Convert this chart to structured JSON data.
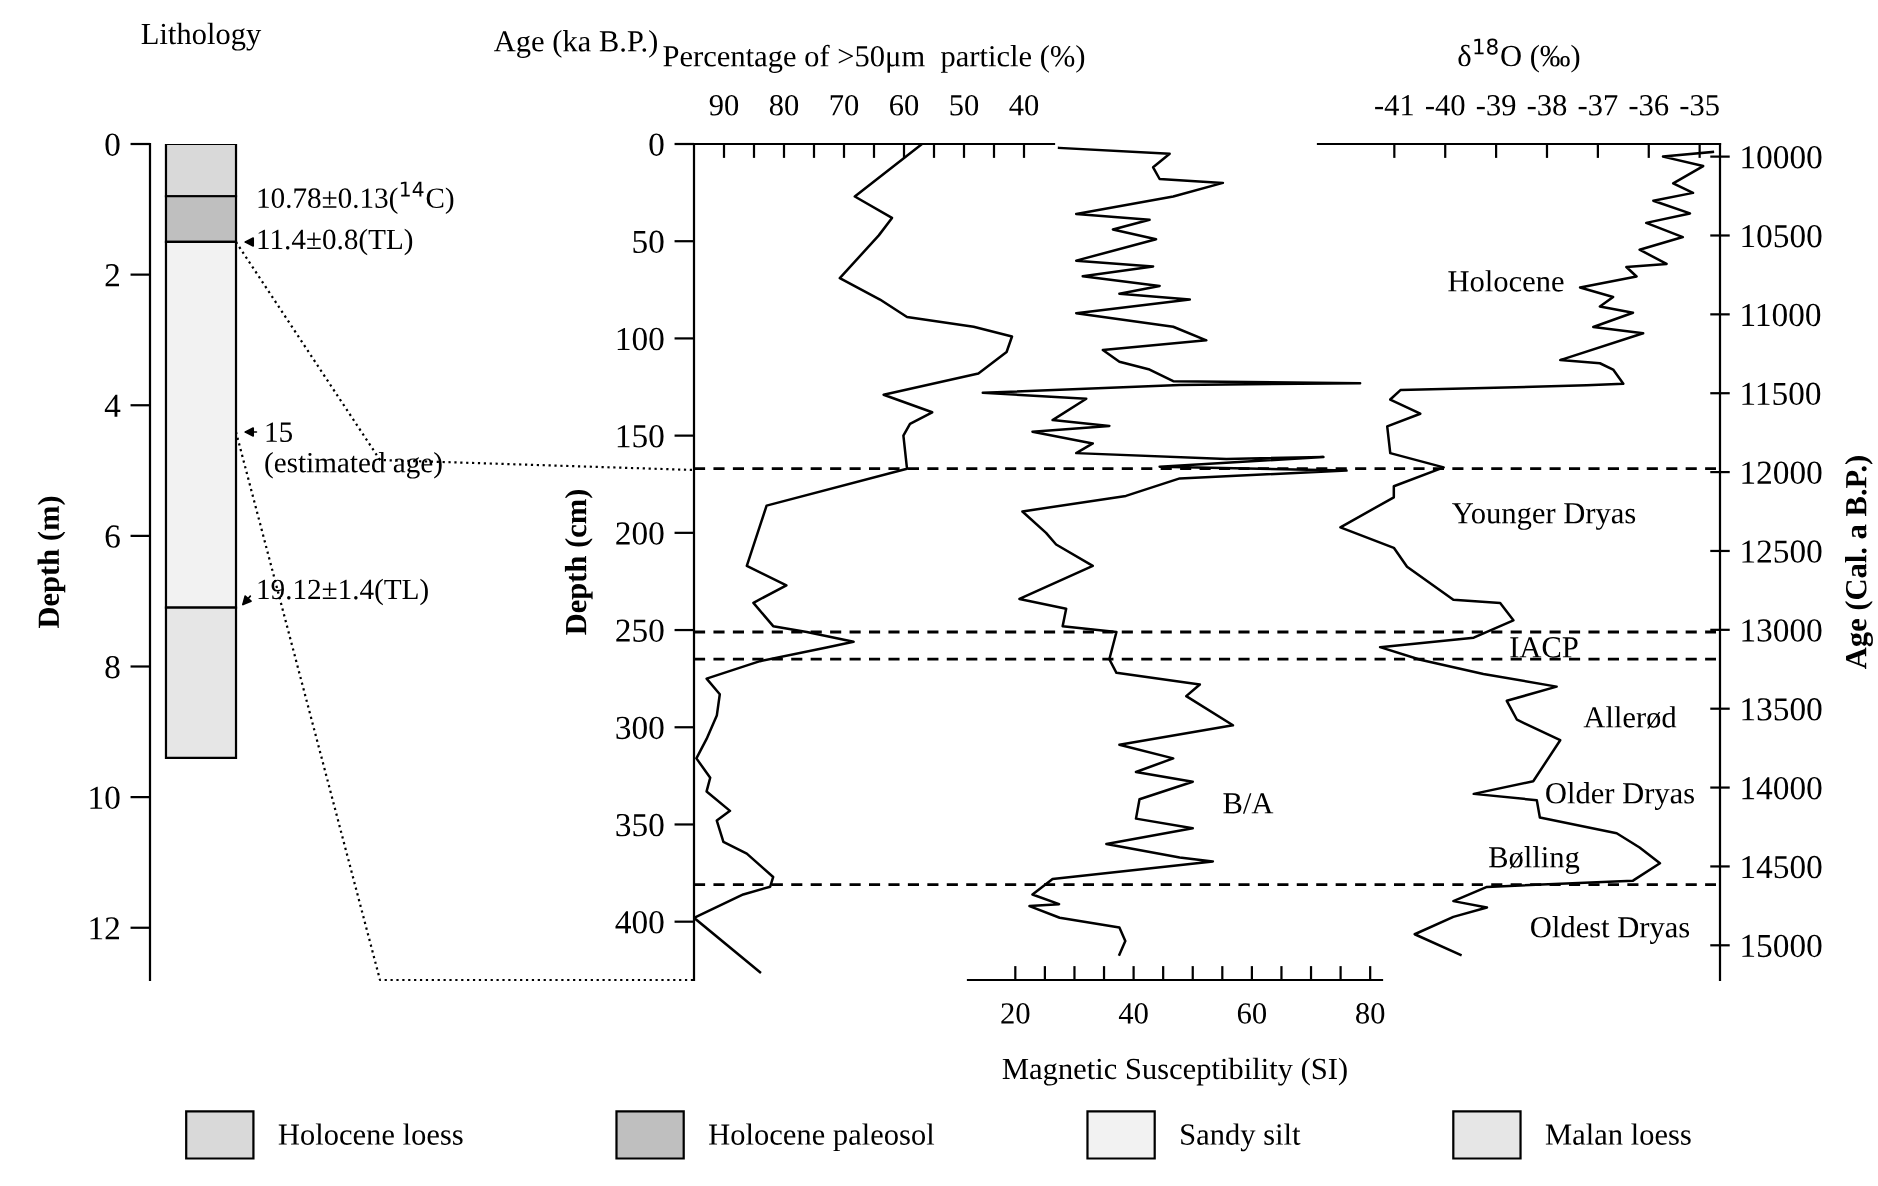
{
  "chart_data": [
    {
      "type": "bar",
      "title": "Lithology",
      "ylabel": "Depth (m)",
      "stacked": true,
      "categories": [
        null
      ],
      "ylim": [
        12.8,
        0
      ],
      "yticks": [
        0,
        2,
        4,
        6,
        8,
        10,
        12
      ],
      "legend": "bottom",
      "series": [
        {
          "name": "Holocene loess",
          "color": "#d9d9d9",
          "values": [
            0.8
          ]
        },
        {
          "name": "Holocene paleosol",
          "color": "#bfbfbf",
          "values": [
            0.7
          ]
        },
        {
          "name": "Sandy silt",
          "color": "#f2f2f2",
          "values": [
            5.6
          ]
        },
        {
          "name": "Malan loess",
          "color": "#e6e6e6",
          "values": [
            2.3
          ]
        }
      ],
      "annotations": [
        "Age (ka B.P.)",
        "10.78±0.13($^{14}$C)",
        "11.4±0.8(TL)",
        "15\n(estimated age)",
        "19.12±1.4(TL)"
      ]
    },
    {
      "type": "line",
      "xlabel": "Percentage of >50μm  particle (%)",
      "ylabel": "Depth (cm)",
      "xlim": [
        95,
        35
      ],
      "xticks": [
        90,
        {
          "value": 85,
          "label": null
        },
        80,
        {
          "value": 75,
          "label": null
        },
        70,
        {
          "value": 65,
          "label": null
        },
        60,
        {
          "value": 55,
          "label": null
        },
        50,
        {
          "value": 45,
          "label": null
        },
        40
      ],
      "ylim": [
        430,
        0
      ],
      "yticks": [
        0,
        50,
        100,
        150,
        200,
        250,
        300,
        350,
        400
      ],
      "ref_lines": [
        {
          "axis": "y",
          "value": 167,
          "line_style": "dashed"
        },
        {
          "axis": "y",
          "value": 251,
          "line_style": "dashed"
        },
        {
          "axis": "y",
          "value": 265,
          "line_style": "dashed"
        },
        {
          "axis": "y",
          "value": 381,
          "line_style": "dashed"
        }
      ],
      "series": [
        {
          "color": "#000000",
          "x": [
            57,
            68.2,
            62,
            64.2,
            70.7,
            64,
            59.5,
            48.4,
            42,
            42.9,
            47.6,
            63.4,
            55.3,
            59,
            60.1,
            59.5,
            82.9,
            86.2,
            79.6,
            85.1,
            81.8,
            76.2,
            68.4,
            72.9,
            84,
            92.9,
            90.7,
            91.2,
            92.9,
            94.6,
            92.3,
            92.9,
            89,
            91.2,
            90.1,
            86.2,
            81.8,
            82.3,
            86.8,
            95,
            84
          ],
          "values": [
            0,
            27,
            38,
            47,
            69,
            80,
            89,
            94,
            99,
            107,
            118,
            129,
            138,
            144,
            150,
            167,
            186,
            217,
            227,
            236,
            248,
            251,
            256,
            259,
            266,
            275,
            283,
            294,
            306,
            316,
            326,
            333,
            343,
            348,
            359,
            365,
            377,
            382,
            386,
            398,
            426
          ]
        }
      ]
    },
    {
      "type": "line",
      "xlabel": "Magnetic Susceptibility (SI)",
      "xlim": [
        12,
        82
      ],
      "xticks": [
        20,
        {
          "value": 25,
          "label": null
        },
        {
          "value": 30,
          "label": null
        },
        {
          "value": 35,
          "label": null
        },
        40,
        {
          "value": 45,
          "label": null
        },
        {
          "value": 50,
          "label": null
        },
        {
          "value": 55,
          "label": null
        },
        60,
        {
          "value": 65,
          "label": null
        },
        {
          "value": 70,
          "label": null
        },
        {
          "value": 75,
          "label": null
        },
        80
      ],
      "ylim": [
        430,
        0
      ],
      "tick_labels": "x",
      "annotations": [
        "B/A"
      ],
      "series": [
        {
          "color": "#000000",
          "x": [
            27.4,
            46.1,
            43.3,
            44.4,
            55.1,
            46.7,
            30.3,
            42.7,
            36.5,
            43.8,
            30.3,
            43.3,
            31.4,
            44.4,
            37.6,
            49.5,
            30.3,
            46.7,
            52.3,
            34.8,
            37.6,
            42.7,
            46.7,
            78.3,
            47.8,
            14.5,
            32,
            26.3,
            35.9,
            22.9,
            33.1,
            30.3,
            55.7,
            72.1,
            44.4,
            76,
            47.8,
            38.7,
            21.2,
            25.2,
            26.9,
            33.1,
            20.7,
            28.6,
            28,
            37.1,
            35.9,
            37.1,
            51.2,
            48.9,
            56.8,
            37.6,
            46.7,
            40.4,
            50,
            41,
            40.4,
            50,
            35.4,
            47.8,
            53.4,
            26.3,
            22.9,
            27.4,
            22.4,
            27.5,
            37.6,
            38.6,
            37.6
          ],
          "values": [
            2,
            5,
            12,
            18,
            20,
            27,
            36,
            39,
            44,
            49,
            60,
            63,
            68,
            73,
            77,
            80,
            87,
            94,
            101,
            106,
            112,
            116,
            122,
            123,
            124,
            128,
            131,
            142,
            145,
            148,
            154,
            159,
            162,
            161,
            166,
            168,
            172,
            181,
            189,
            200,
            206,
            217,
            234,
            239,
            248,
            251,
            265,
            272,
            278,
            284,
            299,
            309,
            316,
            323,
            328,
            337,
            347,
            352,
            360,
            367,
            369,
            378,
            386,
            391,
            392,
            398,
            403,
            410,
            417
          ]
        }
      ]
    },
    {
      "type": "line",
      "xlabel": "δ$^{18}$O (‰)",
      "y2label": "Age (Cal. a B.P.)",
      "xlim": [
        -42.5,
        -34.6
      ],
      "xticks": [
        -41,
        -40,
        -39,
        -38,
        -37,
        -36,
        -35
      ],
      "y2lim": [
        15220,
        9920
      ],
      "y2ticks": [
        10000,
        10500,
        11000,
        11500,
        12000,
        12500,
        13000,
        13500,
        14000,
        14500,
        15000
      ],
      "annotations": [
        "Holocene",
        "Younger Dryas",
        "IACP",
        "Allerød",
        "Older Dryas",
        "Bølling",
        "Oldest Dryas"
      ],
      "series": [
        {
          "color": "#000000",
          "axis": "y2",
          "x": [
            -34.74,
            -35.72,
            -34.93,
            -35.52,
            -35.13,
            -35.91,
            -35.19,
            -36.05,
            -35.33,
            -36.18,
            -35.65,
            -36.44,
            -36.24,
            -37.35,
            -36.7,
            -36.96,
            -36.31,
            -37.09,
            -36.11,
            -37.74,
            -36.96,
            -36.7,
            -36.5,
            -37.22,
            -40.88,
            -41.08,
            -40.49,
            -41.14,
            -41.08,
            -40.03,
            -41.01,
            -41.01,
            -42.06,
            -41.01,
            -40.75,
            -39.84,
            -38.92,
            -38.66,
            -39.44,
            -41.28,
            -40.49,
            -39.25,
            -37.81,
            -38.79,
            -38.59,
            -37.74,
            -38.27,
            -39.44,
            -38.2,
            -38.14,
            -36.63,
            -36.18,
            -35.78,
            -36.31,
            -39.18,
            -39.84,
            -39.18,
            -39.84,
            -40.6,
            -39.7
          ],
          "values": [
            9970,
            10000,
            10060,
            10170,
            10230,
            10280,
            10360,
            10420,
            10510,
            10590,
            10680,
            10700,
            10760,
            10830,
            10890,
            10950,
            10990,
            11080,
            11120,
            11290,
            11310,
            11350,
            11440,
            11450,
            11480,
            11540,
            11630,
            11710,
            11880,
            11970,
            12090,
            12160,
            12350,
            12480,
            12600,
            12810,
            12830,
            12940,
            13050,
            13110,
            13190,
            13280,
            13360,
            13450,
            13570,
            13700,
            13960,
            14040,
            14080,
            14190,
            14290,
            14380,
            14480,
            14590,
            14630,
            14720,
            14760,
            14820,
            14930,
            15060
          ]
        }
      ]
    }
  ]
}
